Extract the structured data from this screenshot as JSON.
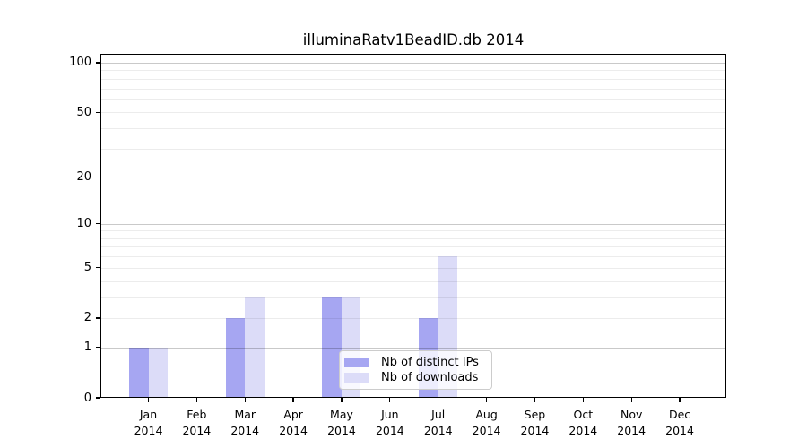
{
  "chart_data": {
    "type": "bar",
    "title": "illuminaRatv1BeadID.db 2014",
    "year": "2014",
    "months": [
      "Jan",
      "Feb",
      "Mar",
      "Apr",
      "May",
      "Jun",
      "Jul",
      "Aug",
      "Sep",
      "Oct",
      "Nov",
      "Dec"
    ],
    "series": [
      {
        "name": "Nb of distinct IPs",
        "color": "#a6a6f2",
        "values": [
          1,
          0,
          2,
          0,
          3,
          0,
          2,
          0,
          0,
          0,
          0,
          0
        ]
      },
      {
        "name": "Nb of downloads",
        "color": "#dcdcf8",
        "values": [
          1,
          0,
          3,
          0,
          3,
          0,
          6,
          0,
          0,
          0,
          0,
          0
        ]
      }
    ],
    "y_ticks": [
      0,
      1,
      2,
      5,
      10,
      20,
      50,
      100
    ],
    "y_scale": "log10(1+y)",
    "ylim": [
      0,
      113
    ],
    "grid": {
      "on": true,
      "major": [
        1,
        10,
        100
      ],
      "minor": [
        2,
        3,
        4,
        5,
        6,
        7,
        8,
        9,
        20,
        30,
        40,
        50,
        60,
        70,
        80,
        90
      ]
    },
    "colors": {
      "major_grid": "rgba(0,0,0,0.21)",
      "minor_grid": "rgba(0,0,0,0.075)",
      "axis": "#000000"
    },
    "legend": {
      "position": "inside-bottom-center"
    }
  }
}
